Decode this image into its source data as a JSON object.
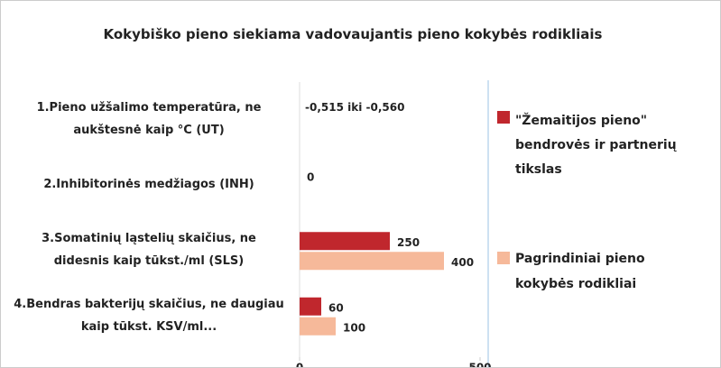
{
  "chart_data": {
    "type": "bar",
    "orientation": "horizontal",
    "title": "Kokybiško pieno siekiama vadovaujantis pieno kokybės rodikliais",
    "categories": [
      "1.Pieno užšalimo temperatūra, ne aukštesnė kaip °C (UT)",
      "2.Inhibitorinės medžiagos (INH)",
      "3.Somatinių ląstelių skaičius, ne didesnis kaip tūkst./ml (SLS)",
      "4.Bendras bakterijų skaičius, ne daugiau kaip tūkst. KSV/ml..."
    ],
    "series": [
      {
        "name": "\"Žemaitijos pieno\" bendrovės ir partnerių tikslas",
        "color": "#c0272d",
        "values": [
          null,
          0,
          250,
          60
        ]
      },
      {
        "name": "Pagrindiniai pieno kokybės rodikliai",
        "color": "#f6b99a",
        "values": [
          null,
          null,
          400,
          100
        ]
      }
    ],
    "annotations": [
      "-0,515 iki -0,560"
    ],
    "xlim": [
      0,
      500
    ],
    "xticks": [
      0,
      500
    ],
    "legend": "right"
  }
}
